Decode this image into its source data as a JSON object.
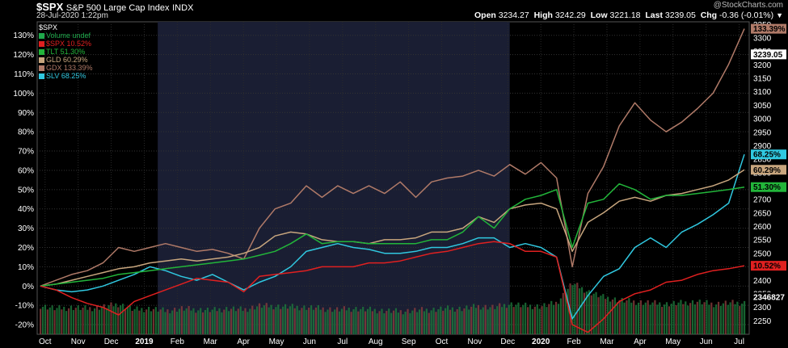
{
  "header": {
    "symbol": "$SPX",
    "name": "S&P 500 Large Cap Index",
    "exchange": "INDX",
    "date": "28-Jul-2020 1:22pm",
    "brand": "@StockCharts.com",
    "open_label": "Open",
    "open": "3234.27",
    "high_label": "High",
    "high": "3242.29",
    "low_label": "Low",
    "low": "3221.18",
    "last_label": "Last",
    "last": "3239.05",
    "chg_label": "Chg",
    "chg": "-0.36 (-0.01%)"
  },
  "legend": {
    "title": "$SPX",
    "items": [
      {
        "label": "Volume undef",
        "color": "#1faa4c"
      },
      {
        "label": "$SPX 10.52%",
        "color": "#e02020"
      },
      {
        "label": "TLT 51.30%",
        "color": "#22b53a"
      },
      {
        "label": "GLD 60.29%",
        "color": "#c8a67e"
      },
      {
        "label": "GDX 133.39%",
        "color": "#b07a68"
      },
      {
        "label": "SLV 68.25%",
        "color": "#30c8e0"
      }
    ]
  },
  "chart_data": {
    "type": "line",
    "title": "$SPX S&P 500 Large Cap Index INDX",
    "background": "#000000",
    "highlight_band_color": "#1a1e33",
    "x_axis_labels": [
      "Oct",
      "Nov",
      "Dec",
      "2019",
      "Feb",
      "Mar",
      "Apr",
      "May",
      "Jun",
      "Jul",
      "Aug",
      "Sep",
      "Oct",
      "Nov",
      "Dec",
      "2020",
      "Feb",
      "Mar",
      "Apr",
      "May",
      "Jun",
      "Jul"
    ],
    "left_axis": {
      "unit": "%",
      "ticks": [
        -20,
        -10,
        0,
        10,
        20,
        30,
        40,
        50,
        60,
        70,
        80,
        90,
        100,
        110,
        120,
        130
      ],
      "ylim": [
        -25,
        137
      ]
    },
    "right_axis": {
      "ticks": [
        2250,
        2300,
        2350,
        2400,
        2450,
        2500,
        2550,
        2600,
        2650,
        2700,
        2750,
        2800,
        2850,
        2900,
        2950,
        3000,
        3050,
        3100,
        3150,
        3200,
        3250,
        3300,
        3350
      ],
      "ylim": [
        2200,
        3360
      ]
    },
    "right_tags": [
      {
        "text": "133.39%",
        "value": 133.39,
        "color": "#b07a68"
      },
      {
        "text": "3239.05",
        "value": 3239.05,
        "axis": "price",
        "color": "#ffffff"
      },
      {
        "text": "68.25%",
        "value": 68.25,
        "color": "#30c8e0"
      },
      {
        "text": "60.29%",
        "value": 60.29,
        "color": "#c8a67e"
      },
      {
        "text": "51.30%",
        "value": 51.3,
        "color": "#22b53a"
      },
      {
        "text": "10.52%",
        "value": 10.52,
        "color": "#e02020"
      },
      {
        "text": "2346827",
        "value": 2346827,
        "axis": "volume",
        "color": "#1faa4c"
      }
    ],
    "x": [
      0,
      0.5,
      1,
      1.5,
      2,
      2.5,
      3,
      3.5,
      4,
      4.5,
      5,
      5.5,
      6,
      6.5,
      7,
      7.5,
      8,
      8.5,
      9,
      9.5,
      10,
      10.5,
      11,
      11.5,
      12,
      12.5,
      13,
      13.5,
      14,
      14.5,
      15,
      15.5,
      16,
      16.5,
      17,
      17.5,
      18,
      18.5,
      19,
      19.5,
      20,
      20.5,
      21,
      21.5,
      22,
      22.5
    ],
    "series": [
      {
        "name": "$SPX",
        "color": "#e02020",
        "values": [
          0,
          -2,
          -6,
          -9,
          -11,
          -15,
          -8,
          -5,
          -2,
          1,
          4,
          3,
          2,
          -3,
          5,
          6,
          7,
          8,
          10,
          10,
          10,
          12,
          12,
          13,
          15,
          17,
          18,
          20,
          22,
          23,
          22,
          18,
          18,
          15,
          -20,
          -24,
          -17,
          -8,
          -4,
          -2,
          2,
          3,
          6,
          8,
          9,
          10.52
        ]
      },
      {
        "name": "TLT",
        "color": "#22b53a",
        "values": [
          0,
          1,
          2,
          3,
          4,
          6,
          7,
          8,
          9,
          10,
          11,
          12,
          13,
          14,
          16,
          18,
          22,
          27,
          22,
          23,
          23,
          22,
          22,
          22,
          22,
          24,
          24,
          28,
          36,
          30,
          40,
          45,
          47,
          50,
          20,
          43,
          45,
          53,
          50,
          45,
          47,
          47,
          48,
          49,
          50,
          51.3
        ]
      },
      {
        "name": "GLD",
        "color": "#c8a67e",
        "values": [
          0,
          1,
          3,
          5,
          7,
          9,
          10,
          12,
          13,
          14,
          13,
          14,
          15,
          17,
          20,
          26,
          28,
          27,
          24,
          23,
          23,
          22,
          24,
          24,
          25,
          28,
          28,
          30,
          36,
          33,
          40,
          42,
          43,
          40,
          18,
          33,
          38,
          44,
          46,
          44,
          47,
          48,
          50,
          52,
          55,
          60.29
        ]
      },
      {
        "name": "GDX",
        "color": "#b07a68",
        "values": [
          0,
          3,
          6,
          8,
          12,
          20,
          18,
          20,
          22,
          20,
          18,
          19,
          17,
          14,
          30,
          40,
          43,
          52,
          46,
          52,
          48,
          52,
          48,
          54,
          46,
          54,
          56,
          57,
          60,
          57,
          63,
          58,
          64,
          56,
          10,
          48,
          62,
          83,
          95,
          86,
          80,
          85,
          92,
          100,
          115,
          133.39
        ]
      },
      {
        "name": "SLV",
        "color": "#30c8e0",
        "values": [
          0,
          -2,
          -3,
          -2,
          0,
          3,
          6,
          10,
          8,
          5,
          3,
          6,
          2,
          -2,
          2,
          5,
          10,
          18,
          20,
          22,
          20,
          19,
          17,
          17,
          18,
          20,
          20,
          22,
          25,
          25,
          20,
          22,
          20,
          15,
          -17,
          -5,
          5,
          9,
          20,
          25,
          20,
          28,
          32,
          37,
          43,
          68.25
        ]
      }
    ],
    "volume": [
      45,
      40,
      42,
      40,
      43,
      48,
      38,
      40,
      36,
      40,
      38,
      37,
      40,
      38,
      45,
      44,
      43,
      42,
      40,
      38,
      40,
      38,
      36,
      35,
      37,
      38,
      40,
      40,
      44,
      42,
      48,
      45,
      44,
      50,
      85,
      70,
      60,
      55,
      52,
      50,
      48,
      50,
      52,
      48,
      50,
      50
    ]
  }
}
